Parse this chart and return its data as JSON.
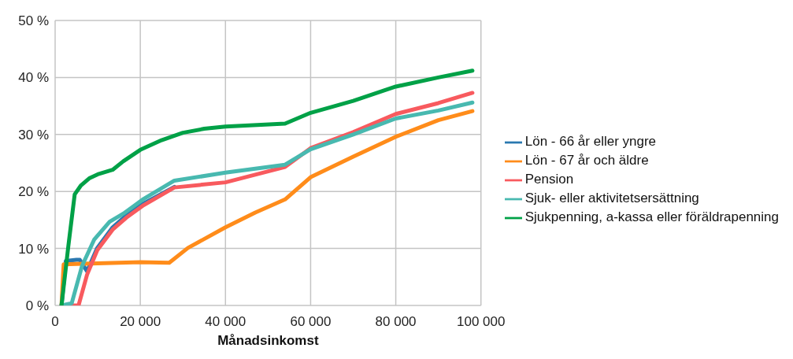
{
  "chart_data": {
    "type": "line",
    "xlabel": "Månadsinkomst",
    "xlim": [
      0,
      100000
    ],
    "xticks": [
      0,
      {
        "value": 20000,
        "label": "20 000"
      },
      {
        "value": 40000,
        "label": "40 000"
      },
      {
        "value": 60000,
        "label": "60 000"
      },
      {
        "value": 80000,
        "label": "80 000"
      },
      {
        "value": 100000,
        "label": "100 000"
      }
    ],
    "ylim": [
      0,
      50
    ],
    "yticks": [
      {
        "value": 0,
        "label": "0 %"
      },
      {
        "value": 10,
        "label": "10 %"
      },
      {
        "value": 20,
        "label": "20 %"
      },
      {
        "value": 30,
        "label": "30 %"
      },
      {
        "value": 40,
        "label": "40 %"
      },
      {
        "value": 50,
        "label": "50 %"
      }
    ],
    "grid": true,
    "legend": "right",
    "marker": "none",
    "line_style": "solid",
    "series": [
      {
        "name": "Lön - 66 år eller yngre",
        "color": "#2a78b0",
        "x": [
          1500,
          2500,
          5000,
          5800,
          7500,
          9900,
          13500,
          16700,
          20800,
          28000
        ],
        "values": [
          0,
          7.8,
          8,
          8,
          6,
          10.1,
          13.7,
          15.8,
          17.9,
          20.8
        ]
      },
      {
        "name": "Lön - 67 år och äldre",
        "color": "#ff8c1a",
        "x": [
          1500,
          2000,
          5000,
          10000,
          20000,
          26800,
          31200,
          40000,
          47000,
          54000,
          60000,
          70000,
          80000,
          90000,
          98000
        ],
        "values": [
          0,
          7.2,
          7.3,
          7.4,
          7.6,
          7.5,
          10.1,
          13.7,
          16.3,
          18.6,
          22.5,
          26.1,
          29.6,
          32.5,
          34.1
        ]
      },
      {
        "name": "Pension",
        "color": "#f85a5e",
        "x": [
          1500,
          5500,
          7500,
          9900,
          13500,
          16700,
          20800,
          28000,
          40000,
          54000,
          60000,
          70000,
          80000,
          90000,
          98000
        ],
        "values": [
          0,
          0,
          5.4,
          9.7,
          13.3,
          15.4,
          17.6,
          20.7,
          21.6,
          24.3,
          27.6,
          30.4,
          33.6,
          35.5,
          37.3
        ]
      },
      {
        "name": "Sjuk- eller aktivitetsersättning",
        "color": "#48b9b0",
        "x": [
          1500,
          3900,
          6300,
          9200,
          12800,
          16000,
          20800,
          28000,
          40000,
          54000,
          60000,
          70000,
          80000,
          90000,
          98000
        ],
        "values": [
          0,
          0.4,
          6.9,
          11.6,
          14.7,
          16.1,
          18.7,
          21.9,
          23.3,
          24.7,
          27.4,
          30,
          32.8,
          34.2,
          35.6
        ]
      },
      {
        "name": "Sjukpenning, a-kassa eller föräldrapenning",
        "color": "#00a147",
        "x": [
          1500,
          3100,
          4600,
          6000,
          8000,
          10000,
          13500,
          16000,
          20000,
          25000,
          30000,
          35000,
          40000,
          54000,
          60000,
          70000,
          80000,
          90000,
          98000
        ],
        "values": [
          0,
          10.4,
          19.5,
          21,
          22.3,
          23,
          23.8,
          25.3,
          27.3,
          29,
          30.3,
          31,
          31.4,
          31.9,
          33.8,
          35.9,
          38.4,
          40,
          41.2
        ]
      }
    ]
  }
}
